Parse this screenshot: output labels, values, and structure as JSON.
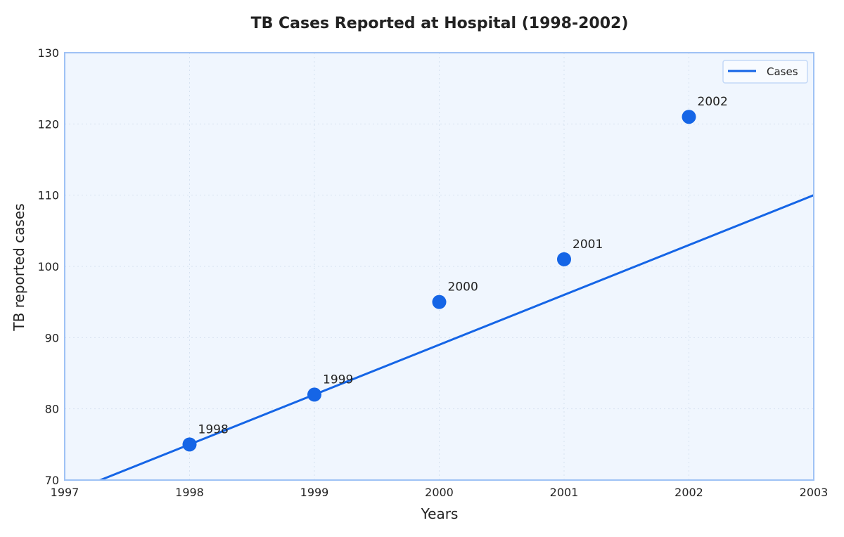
{
  "chart_data": {
    "type": "scatter",
    "title": "TB Cases Reported at Hospital (1998-2002)",
    "xlabel": "Years",
    "ylabel": "TB reported cases",
    "xlim": [
      1997,
      2003
    ],
    "ylim": [
      70,
      130
    ],
    "xticks": [
      "1997",
      "1998",
      "1999",
      "2000",
      "2001",
      "2002",
      "2003"
    ],
    "yticks": [
      "70",
      "80",
      "90",
      "100",
      "110",
      "120",
      "130"
    ],
    "grid": true,
    "legend_position": "top-right",
    "points": [
      {
        "x": 1998,
        "y": 75,
        "label": "1998"
      },
      {
        "x": 1999,
        "y": 82,
        "label": "1999"
      },
      {
        "x": 2000,
        "y": 95,
        "label": "2000"
      },
      {
        "x": 2001,
        "y": 101,
        "label": "2001"
      },
      {
        "x": 2002,
        "y": 121,
        "label": "2002"
      }
    ],
    "series": [
      {
        "name": "Cases",
        "type": "line",
        "x": [
          1997,
          2003
        ],
        "y": [
          68,
          110
        ]
      }
    ],
    "colors": {
      "line": "#1565e6",
      "points": "#1565e6",
      "plot_bg": "#f0f6fe",
      "frame": "#9fc2f5",
      "grid": "#d6e2f0"
    }
  }
}
